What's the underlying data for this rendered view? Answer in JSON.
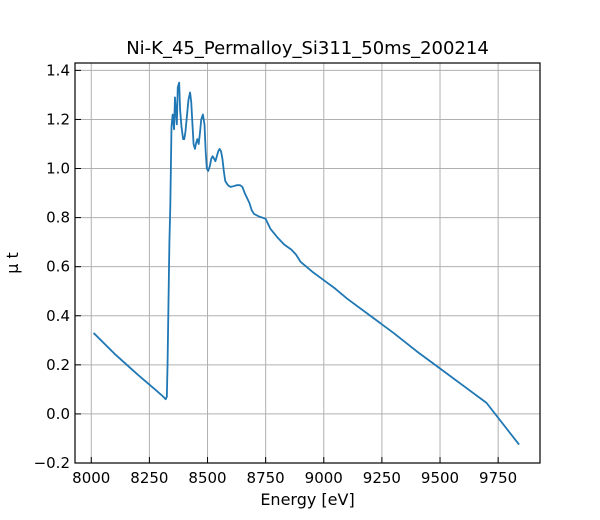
{
  "chart_data": {
    "type": "line",
    "title": "Ni-K_45_Permalloy_Si311_50ms_200214",
    "xlabel": "Energy [eV]",
    "ylabel": "μ t",
    "xlim": [
      7930,
      9930
    ],
    "ylim": [
      -0.2,
      1.43
    ],
    "grid": true,
    "x_ticks": [
      8000,
      8250,
      8500,
      8750,
      9000,
      9250,
      9500,
      9750
    ],
    "x_tick_labels": [
      "8000",
      "8250",
      "8500",
      "8750",
      "9000",
      "9250",
      "9500",
      "9750"
    ],
    "y_ticks": [
      -0.2,
      0.0,
      0.2,
      0.4,
      0.6,
      0.8,
      1.0,
      1.2,
      1.4
    ],
    "y_tick_labels": [
      "−0.2",
      "0.0",
      "0.2",
      "0.4",
      "0.6",
      "0.8",
      "1.0",
      "1.2",
      "1.4"
    ],
    "color": "#1f77b4",
    "series": [
      {
        "name": "Ni-K",
        "x": [
          8010,
          8100,
          8200,
          8280,
          8310,
          8320,
          8325,
          8328,
          8332,
          8336,
          8340,
          8345,
          8350,
          8356,
          8360,
          8365,
          8368,
          8372,
          8378,
          8382,
          8388,
          8395,
          8400,
          8405,
          8410,
          8418,
          8425,
          8430,
          8434,
          8440,
          8446,
          8450,
          8456,
          8462,
          8468,
          8473,
          8480,
          8487,
          8492,
          8497,
          8503,
          8510,
          8516,
          8522,
          8528,
          8534,
          8540,
          8546,
          8552,
          8558,
          8564,
          8570,
          8576,
          8582,
          8590,
          8600,
          8612,
          8625,
          8640,
          8650,
          8660,
          8670,
          8680,
          8690,
          8700,
          8720,
          8750,
          8770,
          8800,
          8830,
          8860,
          8880,
          8900,
          8950,
          9000,
          9050,
          9100,
          9200,
          9300,
          9400,
          9500,
          9600,
          9700,
          9840
        ],
        "y": [
          0.33,
          0.245,
          0.16,
          0.095,
          0.07,
          0.06,
          0.07,
          0.2,
          0.45,
          0.7,
          0.85,
          1.17,
          1.22,
          1.16,
          1.29,
          1.22,
          1.18,
          1.33,
          1.35,
          1.24,
          1.17,
          1.12,
          1.12,
          1.15,
          1.2,
          1.28,
          1.31,
          1.27,
          1.2,
          1.1,
          1.08,
          1.1,
          1.12,
          1.1,
          1.15,
          1.2,
          1.22,
          1.18,
          1.07,
          1.0,
          0.99,
          1.01,
          1.04,
          1.05,
          1.04,
          1.03,
          1.05,
          1.07,
          1.08,
          1.07,
          1.04,
          0.99,
          0.95,
          0.94,
          0.93,
          0.925,
          0.928,
          0.932,
          0.932,
          0.925,
          0.9,
          0.88,
          0.86,
          0.83,
          0.815,
          0.805,
          0.795,
          0.755,
          0.72,
          0.69,
          0.67,
          0.65,
          0.62,
          0.58,
          0.545,
          0.51,
          0.47,
          0.4,
          0.33,
          0.255,
          0.185,
          0.115,
          0.045,
          -0.125
        ]
      }
    ]
  }
}
